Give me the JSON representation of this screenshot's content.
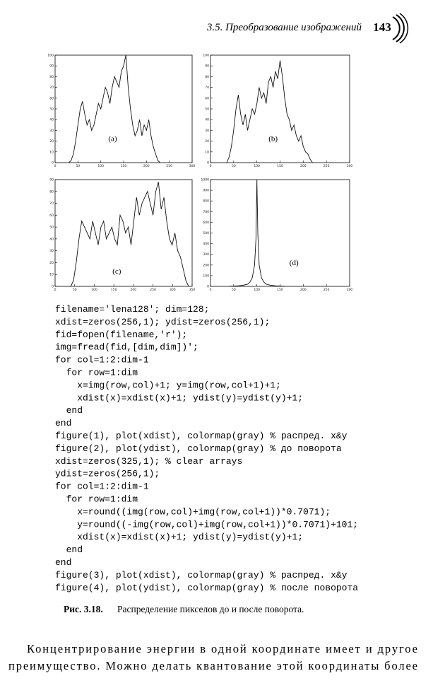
{
  "header": {
    "section": "3.5. Преобразование изображений",
    "page_number": "143"
  },
  "chart_data": [
    {
      "type": "line",
      "label": "(a)",
      "xlim": [
        0,
        300
      ],
      "xticks": [
        0,
        50,
        100,
        150,
        200,
        250,
        300
      ],
      "ylim": [
        0,
        100
      ],
      "yticks": [
        0,
        10,
        20,
        30,
        40,
        50,
        60,
        70,
        80,
        90,
        100
      ],
      "x": [
        30,
        35,
        40,
        45,
        50,
        55,
        60,
        65,
        70,
        75,
        80,
        85,
        90,
        95,
        100,
        105,
        110,
        115,
        120,
        125,
        130,
        135,
        140,
        145,
        150,
        155,
        160,
        165,
        170,
        175,
        180,
        185,
        190,
        195,
        200,
        205,
        210,
        215,
        220,
        225,
        230
      ],
      "values": [
        0,
        2,
        8,
        20,
        35,
        50,
        57,
        45,
        35,
        40,
        30,
        35,
        45,
        55,
        50,
        60,
        70,
        65,
        55,
        70,
        80,
        75,
        70,
        85,
        90,
        100,
        70,
        50,
        35,
        25,
        30,
        40,
        25,
        35,
        30,
        40,
        25,
        15,
        8,
        2,
        0
      ],
      "color": "#111"
    },
    {
      "type": "line",
      "label": "(b)",
      "xlim": [
        0,
        300
      ],
      "xticks": [
        0,
        50,
        100,
        150,
        200,
        250,
        300
      ],
      "ylim": [
        0,
        100
      ],
      "yticks": [
        0,
        10,
        20,
        30,
        40,
        50,
        60,
        70,
        80,
        90,
        100
      ],
      "x": [
        35,
        40,
        45,
        50,
        55,
        60,
        65,
        70,
        75,
        80,
        85,
        90,
        95,
        100,
        105,
        110,
        115,
        120,
        125,
        130,
        135,
        140,
        145,
        150,
        155,
        160,
        165,
        170,
        175,
        180,
        185,
        190,
        195,
        200,
        205,
        210,
        215,
        220
      ],
      "values": [
        0,
        5,
        15,
        30,
        50,
        63,
        45,
        35,
        45,
        30,
        40,
        50,
        45,
        55,
        70,
        60,
        65,
        55,
        75,
        80,
        70,
        85,
        78,
        95,
        80,
        60,
        45,
        40,
        30,
        35,
        25,
        20,
        25,
        15,
        10,
        8,
        3,
        0
      ],
      "color": "#111"
    },
    {
      "type": "line",
      "label": "(c)",
      "xlim": [
        0,
        350
      ],
      "xticks": [
        0,
        50,
        100,
        150,
        200,
        250,
        300,
        350
      ],
      "ylim": [
        0,
        90
      ],
      "yticks": [
        0,
        10,
        20,
        30,
        40,
        50,
        60,
        70,
        80,
        90
      ],
      "x": [
        40,
        47,
        54,
        61,
        68,
        75,
        82,
        89,
        96,
        103,
        110,
        117,
        124,
        131,
        138,
        145,
        152,
        159,
        166,
        173,
        180,
        187,
        194,
        201,
        208,
        215,
        222,
        229,
        236,
        243,
        250,
        257,
        264,
        271,
        278,
        285,
        292,
        299,
        306,
        313,
        320,
        327,
        334,
        341
      ],
      "values": [
        0,
        5,
        20,
        40,
        55,
        50,
        45,
        40,
        55,
        45,
        35,
        50,
        55,
        40,
        45,
        50,
        40,
        35,
        60,
        55,
        45,
        50,
        35,
        55,
        75,
        60,
        70,
        75,
        80,
        70,
        60,
        80,
        88,
        65,
        75,
        55,
        40,
        35,
        45,
        30,
        25,
        15,
        5,
        0
      ],
      "color": "#111"
    },
    {
      "type": "line",
      "label": "(d)",
      "xlim": [
        0,
        300
      ],
      "xticks": [
        0,
        50,
        100,
        150,
        200,
        250,
        300
      ],
      "ylim": [
        0,
        1000
      ],
      "yticks": [
        0,
        100,
        200,
        300,
        400,
        500,
        600,
        700,
        800,
        900,
        1000
      ],
      "x": [
        40,
        60,
        70,
        80,
        85,
        90,
        95,
        98,
        100,
        102,
        105,
        110,
        115,
        120,
        130,
        140,
        160
      ],
      "values": [
        0,
        5,
        10,
        20,
        40,
        80,
        200,
        450,
        1000,
        500,
        200,
        80,
        40,
        20,
        10,
        5,
        0
      ],
      "color": "#111"
    }
  ],
  "code": {
    "lines": [
      "filename='lena128'; dim=128;",
      "xdist=zeros(256,1); ydist=zeros(256,1);",
      "fid=fopen(filename,'r');",
      "img=fread(fid,[dim,dim])';",
      "for col=1:2:dim-1",
      "  for row=1:dim",
      "    x=img(row,col)+1; y=img(row,col+1)+1;",
      "    xdist(x)=xdist(x)+1; ydist(y)=ydist(y)+1;",
      "  end",
      "end",
      "figure(1), plot(xdist), colormap(gray) % распред. x&y",
      "figure(2), plot(ydist), colormap(gray) % до поворота",
      "xdist=zeros(325,1); % clear arrays",
      "ydist=zeros(256,1);",
      "for col=1:2:dim-1",
      "  for row=1:dim",
      "    x=round((img(row,col)+img(row,col+1))*0.7071);",
      "    y=round((-img(row,col)+img(row,col+1))*0.7071)+101;",
      "    xdist(x)=xdist(x)+1; ydist(y)=ydist(y)+1;",
      "  end",
      "end",
      "figure(3), plot(xdist), colormap(gray) % распред. x&y",
      "figure(4), plot(ydist), colormap(gray) % после поворота"
    ]
  },
  "caption": {
    "label": "Рис. 3.18.",
    "text": "Распределение пикселов до и после поворота."
  },
  "paragraph": {
    "lines": [
      "Концентрирование энергии в одной координате имеет и другое",
      "преимущество. Можно делать квантование этой координаты более"
    ]
  }
}
